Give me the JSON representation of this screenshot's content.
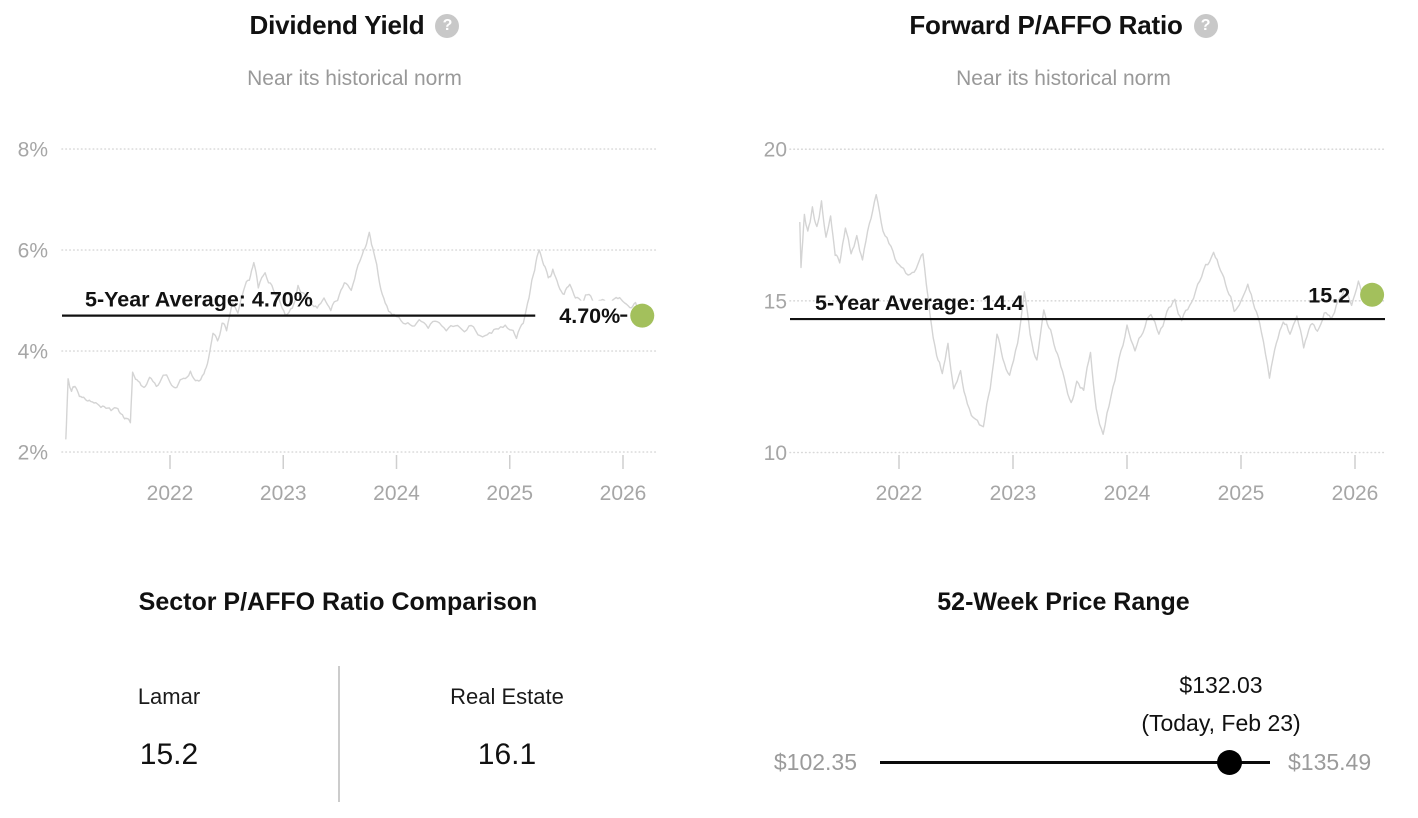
{
  "chart_data": [
    {
      "type": "line",
      "title": "Dividend Yield",
      "subtitle": "Near its historical norm",
      "help_glyph": "?",
      "grid": "dotted",
      "legend": "none",
      "ylim": [
        2,
        8
      ],
      "x_range": [
        2021.08,
        2026.17
      ],
      "y_ticks": [
        {
          "value": 8,
          "label": "8%"
        },
        {
          "value": 6,
          "label": "6%"
        },
        {
          "value": 4,
          "label": "4%"
        },
        {
          "value": 2,
          "label": "2%"
        }
      ],
      "x_ticks": [
        {
          "value": 2022,
          "label": "2022"
        },
        {
          "value": 2023,
          "label": "2023"
        },
        {
          "value": 2024,
          "label": "2024"
        },
        {
          "value": 2025,
          "label": "2025"
        },
        {
          "value": 2026,
          "label": "2026"
        }
      ],
      "average": {
        "value": 4.7,
        "label": "5-Year Average: 4.70%"
      },
      "current": {
        "value": 4.7,
        "label": "4.70%",
        "year": 2026.17
      },
      "series_color": "#d4d4d4",
      "dot_color": "#a3c05c",
      "series": [
        [
          2021.08,
          2.25
        ],
        [
          2021.1,
          3.45
        ],
        [
          2021.13,
          3.2
        ],
        [
          2021.16,
          3.3
        ],
        [
          2021.2,
          3.1
        ],
        [
          2021.25,
          3.05
        ],
        [
          2021.3,
          3.0
        ],
        [
          2021.36,
          2.95
        ],
        [
          2021.42,
          2.9
        ],
        [
          2021.48,
          2.82
        ],
        [
          2021.54,
          2.86
        ],
        [
          2021.58,
          2.74
        ],
        [
          2021.62,
          2.66
        ],
        [
          2021.65,
          2.58
        ],
        [
          2021.67,
          3.58
        ],
        [
          2021.72,
          3.4
        ],
        [
          2021.77,
          3.28
        ],
        [
          2021.82,
          3.48
        ],
        [
          2021.88,
          3.3
        ],
        [
          2021.94,
          3.52
        ],
        [
          2022.0,
          3.38
        ],
        [
          2022.06,
          3.28
        ],
        [
          2022.12,
          3.46
        ],
        [
          2022.18,
          3.6
        ],
        [
          2022.24,
          3.42
        ],
        [
          2022.3,
          3.55
        ],
        [
          2022.34,
          3.85
        ],
        [
          2022.38,
          4.35
        ],
        [
          2022.42,
          4.2
        ],
        [
          2022.46,
          4.55
        ],
        [
          2022.5,
          4.4
        ],
        [
          2022.55,
          4.95
        ],
        [
          2022.6,
          4.75
        ],
        [
          2022.65,
          5.2
        ],
        [
          2022.7,
          5.4
        ],
        [
          2022.74,
          5.75
        ],
        [
          2022.78,
          5.25
        ],
        [
          2022.84,
          5.55
        ],
        [
          2022.9,
          5.3
        ],
        [
          2022.96,
          5.05
        ],
        [
          2023.02,
          4.7
        ],
        [
          2023.08,
          4.85
        ],
        [
          2023.13,
          5.3
        ],
        [
          2023.18,
          5.15
        ],
        [
          2023.24,
          4.95
        ],
        [
          2023.3,
          4.85
        ],
        [
          2023.36,
          5.05
        ],
        [
          2023.42,
          4.8
        ],
        [
          2023.48,
          5.0
        ],
        [
          2023.54,
          5.35
        ],
        [
          2023.6,
          5.2
        ],
        [
          2023.66,
          5.7
        ],
        [
          2023.71,
          6.0
        ],
        [
          2023.76,
          6.35
        ],
        [
          2023.8,
          5.95
        ],
        [
          2023.85,
          5.35
        ],
        [
          2023.9,
          4.95
        ],
        [
          2023.96,
          4.72
        ],
        [
          2024.04,
          4.6
        ],
        [
          2024.12,
          4.52
        ],
        [
          2024.2,
          4.62
        ],
        [
          2024.28,
          4.45
        ],
        [
          2024.36,
          4.58
        ],
        [
          2024.44,
          4.4
        ],
        [
          2024.52,
          4.5
        ],
        [
          2024.6,
          4.38
        ],
        [
          2024.68,
          4.48
        ],
        [
          2024.76,
          4.28
        ],
        [
          2024.84,
          4.35
        ],
        [
          2024.92,
          4.48
        ],
        [
          2025.0,
          4.42
        ],
        [
          2025.06,
          4.25
        ],
        [
          2025.12,
          4.55
        ],
        [
          2025.17,
          5.05
        ],
        [
          2025.22,
          5.6
        ],
        [
          2025.26,
          6.0
        ],
        [
          2025.3,
          5.7
        ],
        [
          2025.34,
          5.45
        ],
        [
          2025.38,
          5.62
        ],
        [
          2025.43,
          5.3
        ],
        [
          2025.48,
          5.12
        ],
        [
          2025.53,
          5.32
        ],
        [
          2025.58,
          5.05
        ],
        [
          2025.64,
          4.95
        ],
        [
          2025.7,
          5.12
        ],
        [
          2025.76,
          4.88
        ],
        [
          2025.82,
          5.02
        ],
        [
          2025.88,
          4.92
        ],
        [
          2025.94,
          5.06
        ],
        [
          2026.0,
          4.98
        ],
        [
          2026.06,
          4.86
        ],
        [
          2026.11,
          4.96
        ],
        [
          2026.17,
          4.7
        ]
      ]
    },
    {
      "type": "line",
      "title": "Forward P/AFFO Ratio",
      "subtitle": "Near its historical norm",
      "help_glyph": "?",
      "grid": "dotted",
      "legend": "none",
      "ylim": [
        10,
        20
      ],
      "x_range": [
        2021.13,
        2026.15
      ],
      "y_ticks": [
        {
          "value": 20,
          "label": "20"
        },
        {
          "value": 15,
          "label": "15"
        },
        {
          "value": 10,
          "label": "10"
        }
      ],
      "x_ticks": [
        {
          "value": 2022,
          "label": "2022"
        },
        {
          "value": 2023,
          "label": "2023"
        },
        {
          "value": 2024,
          "label": "2024"
        },
        {
          "value": 2025,
          "label": "2025"
        },
        {
          "value": 2026,
          "label": "2026"
        }
      ],
      "average": {
        "value": 14.4,
        "label": "5-Year Average: 14.4"
      },
      "current": {
        "value": 15.2,
        "label": "15.2",
        "year": 2026.15
      },
      "series_color": "#d4d4d4",
      "dot_color": "#a3c05c",
      "series": [
        [
          2021.13,
          17.6
        ],
        [
          2021.14,
          16.1
        ],
        [
          2021.17,
          17.85
        ],
        [
          2021.2,
          17.3
        ],
        [
          2021.24,
          18.1
        ],
        [
          2021.28,
          17.45
        ],
        [
          2021.32,
          18.3
        ],
        [
          2021.36,
          17.1
        ],
        [
          2021.4,
          17.8
        ],
        [
          2021.44,
          16.5
        ],
        [
          2021.48,
          16.25
        ],
        [
          2021.53,
          17.4
        ],
        [
          2021.58,
          16.55
        ],
        [
          2021.63,
          17.15
        ],
        [
          2021.68,
          16.35
        ],
        [
          2021.74,
          17.55
        ],
        [
          2021.8,
          18.5
        ],
        [
          2021.86,
          17.3
        ],
        [
          2021.93,
          16.8
        ],
        [
          2022.0,
          16.2
        ],
        [
          2022.08,
          15.85
        ],
        [
          2022.15,
          16.05
        ],
        [
          2022.21,
          16.55
        ],
        [
          2022.27,
          14.6
        ],
        [
          2022.33,
          13.2
        ],
        [
          2022.38,
          12.6
        ],
        [
          2022.43,
          13.6
        ],
        [
          2022.48,
          12.1
        ],
        [
          2022.54,
          12.7
        ],
        [
          2022.6,
          11.6
        ],
        [
          2022.67,
          11.1
        ],
        [
          2022.74,
          10.85
        ],
        [
          2022.8,
          12.1
        ],
        [
          2022.86,
          13.9
        ],
        [
          2022.91,
          13.1
        ],
        [
          2022.97,
          12.55
        ],
        [
          2023.04,
          13.6
        ],
        [
          2023.1,
          15.3
        ],
        [
          2023.15,
          13.9
        ],
        [
          2023.21,
          13.05
        ],
        [
          2023.27,
          14.7
        ],
        [
          2023.33,
          14.05
        ],
        [
          2023.39,
          13.25
        ],
        [
          2023.45,
          12.45
        ],
        [
          2023.51,
          11.65
        ],
        [
          2023.56,
          12.35
        ],
        [
          2023.62,
          12.05
        ],
        [
          2023.68,
          13.3
        ],
        [
          2023.73,
          11.45
        ],
        [
          2023.79,
          10.6
        ],
        [
          2023.86,
          11.85
        ],
        [
          2023.93,
          13.1
        ],
        [
          2024.0,
          14.2
        ],
        [
          2024.07,
          13.35
        ],
        [
          2024.14,
          13.95
        ],
        [
          2024.21,
          14.55
        ],
        [
          2024.28,
          13.9
        ],
        [
          2024.35,
          14.65
        ],
        [
          2024.42,
          15.05
        ],
        [
          2024.48,
          14.35
        ],
        [
          2024.55,
          14.85
        ],
        [
          2024.62,
          15.55
        ],
        [
          2024.69,
          16.2
        ],
        [
          2024.76,
          16.6
        ],
        [
          2024.82,
          16.0
        ],
        [
          2024.88,
          15.35
        ],
        [
          2024.94,
          14.65
        ],
        [
          2025.0,
          15.0
        ],
        [
          2025.06,
          15.55
        ],
        [
          2025.12,
          14.75
        ],
        [
          2025.18,
          13.95
        ],
        [
          2025.25,
          12.45
        ],
        [
          2025.31,
          13.6
        ],
        [
          2025.37,
          14.3
        ],
        [
          2025.43,
          13.9
        ],
        [
          2025.49,
          14.5
        ],
        [
          2025.55,
          13.45
        ],
        [
          2025.61,
          14.2
        ],
        [
          2025.67,
          14.0
        ],
        [
          2025.73,
          14.6
        ],
        [
          2025.79,
          14.4
        ],
        [
          2025.85,
          15.0
        ],
        [
          2025.91,
          15.4
        ],
        [
          2025.97,
          14.85
        ],
        [
          2026.03,
          15.65
        ],
        [
          2026.09,
          15.05
        ],
        [
          2026.15,
          15.2
        ]
      ]
    },
    {
      "type": "table",
      "title": "Sector P/AFFO Ratio Comparison",
      "items": [
        {
          "label": "Lamar",
          "value": "15.2"
        },
        {
          "label": "Real Estate",
          "value": "16.1"
        }
      ]
    },
    {
      "type": "range",
      "title": "52-Week Price Range",
      "min": 102.35,
      "max": 135.49,
      "current": 132.03,
      "min_label": "$102.35",
      "max_label": "$135.49",
      "current_label": "$132.03",
      "current_note": "(Today, Feb 23)"
    }
  ],
  "colors": {
    "accent_dot": "#a3c05c",
    "series_line": "#d4d4d4",
    "grid_line": "#d9d9d9",
    "axis_text": "#a6a6a6",
    "muted_text": "#999999",
    "strong_text": "#111111"
  }
}
